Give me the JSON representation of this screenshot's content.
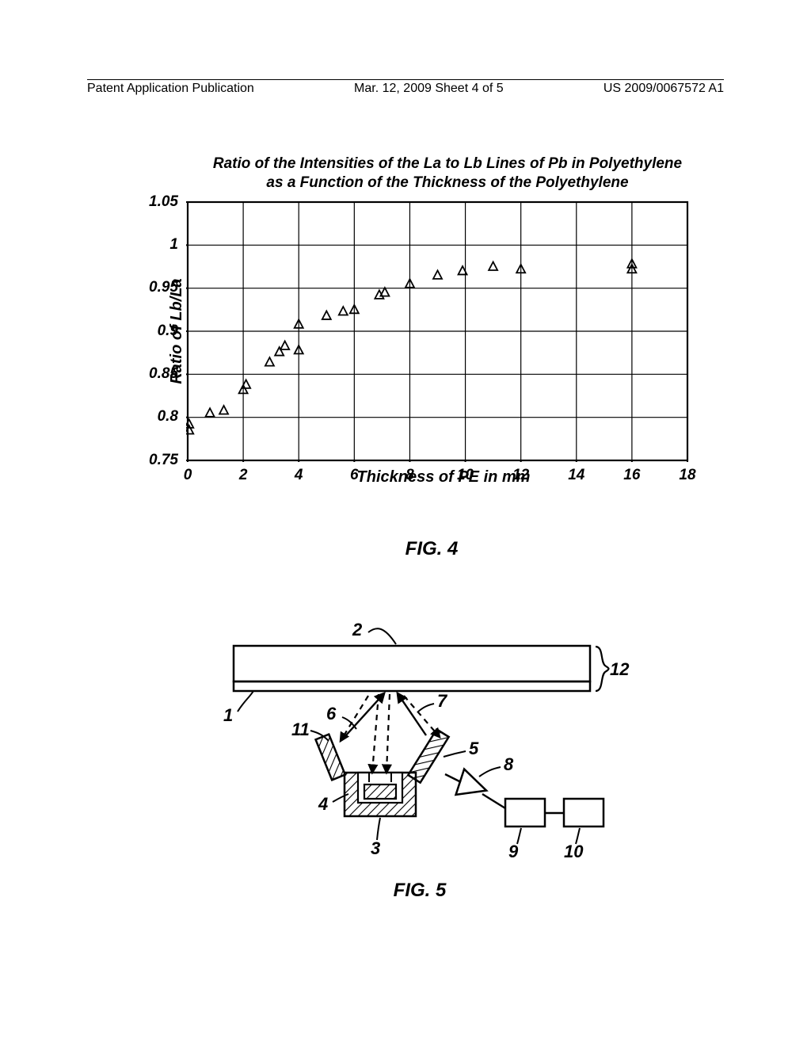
{
  "header": {
    "left": "Patent Application Publication",
    "center": "Mar. 12, 2009  Sheet 4 of 5",
    "right": "US 2009/0067572 A1"
  },
  "fig4": {
    "title_line1": "Ratio of the Intensities of the La to Lb Lines of Pb in Polyethylene",
    "title_line2": "as a Function of the Thickness of the Polyethylene",
    "caption": "FIG. 4",
    "chart": {
      "type": "scatter",
      "xlabel": "Thickness of PE in mm",
      "ylabel": "Ratio of Lb/La",
      "xlim": [
        0,
        18
      ],
      "ylim": [
        0.75,
        1.05
      ],
      "xtick_step": 2,
      "ytick_step": 0.05,
      "xticks": [
        0,
        2,
        4,
        6,
        8,
        10,
        12,
        14,
        16,
        18
      ],
      "yticks": [
        0.75,
        0.8,
        0.85,
        0.9,
        0.95,
        1,
        1.05
      ],
      "background_color": "#ffffff",
      "border_color": "#000000",
      "grid_color": "#000000",
      "grid_width": 1.2,
      "border_width": 2.2,
      "marker": "triangle-open",
      "marker_size": 10,
      "marker_color": "#000000",
      "points": [
        {
          "x": 0.05,
          "y": 0.785
        },
        {
          "x": 0.05,
          "y": 0.792
        },
        {
          "x": 0.8,
          "y": 0.805
        },
        {
          "x": 1.3,
          "y": 0.808
        },
        {
          "x": 2.0,
          "y": 0.832
        },
        {
          "x": 2.1,
          "y": 0.838
        },
        {
          "x": 2.95,
          "y": 0.864
        },
        {
          "x": 3.3,
          "y": 0.876
        },
        {
          "x": 3.5,
          "y": 0.883
        },
        {
          "x": 4.0,
          "y": 0.878
        },
        {
          "x": 4.0,
          "y": 0.908
        },
        {
          "x": 5.0,
          "y": 0.918
        },
        {
          "x": 5.6,
          "y": 0.923
        },
        {
          "x": 6.0,
          "y": 0.925
        },
        {
          "x": 6.9,
          "y": 0.942
        },
        {
          "x": 7.1,
          "y": 0.945
        },
        {
          "x": 8.0,
          "y": 0.955
        },
        {
          "x": 9.0,
          "y": 0.965
        },
        {
          "x": 9.9,
          "y": 0.97
        },
        {
          "x": 11.0,
          "y": 0.975
        },
        {
          "x": 12.0,
          "y": 0.972
        },
        {
          "x": 16.0,
          "y": 0.972
        },
        {
          "x": 16.0,
          "y": 0.978
        }
      ]
    }
  },
  "fig5": {
    "caption": "FIG. 5",
    "type": "diagram",
    "stroke_color": "#000000",
    "stroke_width": 2.5,
    "annotations": {
      "n1": "1",
      "n2": "2",
      "n3": "3",
      "n4": "4",
      "n5": "5",
      "n6": "6",
      "n7": "7",
      "n8": "8",
      "n9": "9",
      "n10": "10",
      "n11": "11",
      "n12": "12"
    },
    "brace_label": "12"
  }
}
